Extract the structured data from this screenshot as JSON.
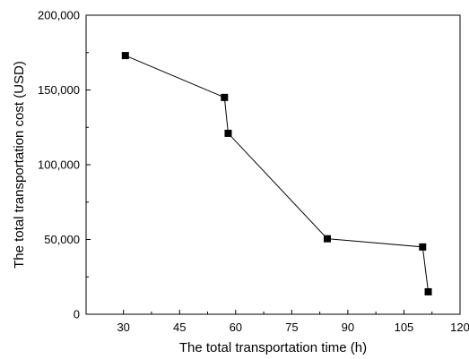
{
  "chart_data": {
    "type": "line",
    "xlabel": "The total transportation time (h)",
    "ylabel": "The total transportation cost (USD)",
    "xlim": [
      20,
      120
    ],
    "ylim": [
      0,
      200000
    ],
    "x_ticks": [
      30,
      45,
      60,
      75,
      90,
      105,
      120
    ],
    "y_ticks": [
      0,
      50000,
      100000,
      150000,
      200000
    ],
    "x_tick_labels": [
      "30",
      "45",
      "60",
      "75",
      "90",
      "105",
      "120"
    ],
    "y_tick_labels": [
      "0",
      "50,000",
      "100,000",
      "150,000",
      "200,000"
    ],
    "grid": false,
    "marker": "square",
    "series": [
      {
        "x": [
          30.5,
          57,
          58,
          84.5,
          110,
          111.5
        ],
        "y": [
          173000,
          145000,
          121000,
          50500,
          45000,
          15000
        ],
        "color": "#000000"
      }
    ]
  }
}
